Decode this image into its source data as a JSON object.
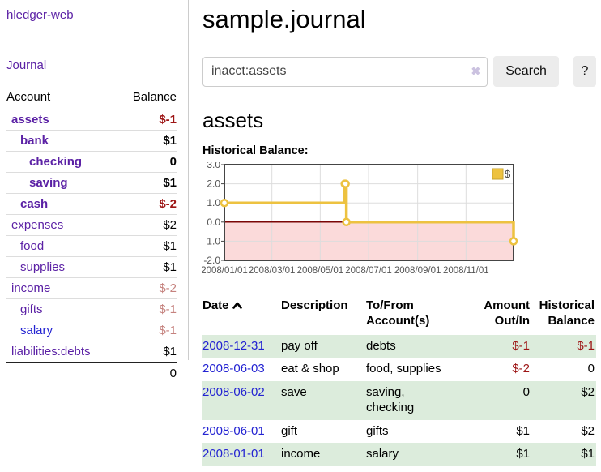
{
  "colors": {
    "purple": "#5b21a5",
    "blue": "#2323d2",
    "negStrong": "#9d1515",
    "negMuted": "#c5827e",
    "rowGreen": "#dcecdc",
    "gold": "#edc240",
    "goldBorder": "#c6a32f",
    "pink": "#fbdada",
    "zeroRed": "#7a0606",
    "chartBorder": "#454545",
    "chartGrid": "#dddddd",
    "chartLabel": "#545454",
    "btnBg": "#ececec",
    "inputBorder": "#cccccc",
    "clearIcon": "#cbc2e0"
  },
  "sidebar": {
    "app_title": "hledger-web",
    "journal_label": "Journal",
    "accounts_table": {
      "header_account": "Account",
      "header_balance": "Balance",
      "rows": [
        {
          "name": "assets",
          "indent": 1,
          "bold": true,
          "name_class": "purple",
          "balance": "$-1",
          "balance_class": "neg-strong"
        },
        {
          "name": "bank",
          "indent": 2,
          "bold": true,
          "name_class": "purple",
          "balance": "$1",
          "balance_class": ""
        },
        {
          "name": "checking",
          "indent": 3,
          "bold": true,
          "name_class": "purple",
          "balance": "0",
          "balance_class": ""
        },
        {
          "name": "saving",
          "indent": 3,
          "bold": true,
          "name_class": "purple",
          "balance": "$1",
          "balance_class": ""
        },
        {
          "name": "cash",
          "indent": 2,
          "bold": true,
          "name_class": "purple",
          "balance": "$-2",
          "balance_class": "neg-strong"
        },
        {
          "name": "expenses",
          "indent": 1,
          "bold": false,
          "name_class": "purple",
          "balance": "$2",
          "balance_class": ""
        },
        {
          "name": "food",
          "indent": 2,
          "bold": false,
          "name_class": "purple",
          "balance": "$1",
          "balance_class": ""
        },
        {
          "name": "supplies",
          "indent": 2,
          "bold": false,
          "name_class": "purple",
          "balance": "$1",
          "balance_class": ""
        },
        {
          "name": "income",
          "indent": 1,
          "bold": false,
          "name_class": "purple",
          "balance": "$-2",
          "balance_class": "neg-muted"
        },
        {
          "name": "gifts",
          "indent": 2,
          "bold": false,
          "name_class": "purple",
          "balance": "$-1",
          "balance_class": "neg-muted"
        },
        {
          "name": "salary",
          "indent": 2,
          "bold": false,
          "name_class": "blue",
          "balance": "$-1",
          "balance_class": "neg-muted"
        },
        {
          "name": "liabilities:debts",
          "indent": 1,
          "bold": false,
          "name_class": "purple",
          "balance": "$1",
          "balance_class": ""
        }
      ],
      "total": "0"
    }
  },
  "main": {
    "title": "sample.journal",
    "search": {
      "value": "inacct:assets",
      "clear_glyph": "✖",
      "clear_icon_name": "clear-search-icon",
      "button_label": "Search",
      "help_label": "?"
    },
    "account_heading": "assets"
  },
  "chart_data": {
    "type": "line",
    "step": true,
    "title": "Historical Balance:",
    "series": [
      {
        "name": "$",
        "x": [
          "2008-01-01",
          "2008-06-01",
          "2008-06-02",
          "2008-06-03",
          "2008-12-31"
        ],
        "values": [
          1,
          2,
          2,
          0,
          -1
        ]
      }
    ],
    "x_range": [
      "2008-01-01",
      "2008-12-31"
    ],
    "x_ticks": [
      {
        "label": "2008/01/01",
        "date": "2008-01-01"
      },
      {
        "label": "2008/03/01",
        "date": "2008-03-01"
      },
      {
        "label": "2008/05/01",
        "date": "2008-05-01"
      },
      {
        "label": "2008/07/01",
        "date": "2008-07-01"
      },
      {
        "label": "2008/09/01",
        "date": "2008-09-01"
      },
      {
        "label": "2008/11/01",
        "date": "2008-11-01"
      }
    ],
    "y_ticks": [
      {
        "label": "3.0",
        "value": 3
      },
      {
        "label": "2.0",
        "value": 2
      },
      {
        "label": "1.0",
        "value": 1
      },
      {
        "label": "0.0",
        "value": 0
      },
      {
        "label": "-1.0",
        "value": -1
      },
      {
        "label": "-2.0",
        "value": -2
      }
    ],
    "ylim": [
      -2,
      3
    ],
    "negative_region_shaded": true,
    "legend_position": "top-right",
    "grid": true
  },
  "register": {
    "headers": {
      "date": "Date",
      "sort_icon": "chevron-up",
      "description": "Description",
      "accounts": "To/From Account(s)",
      "amount": "Amount Out/In",
      "balance": "Historical Balance"
    },
    "rows": [
      {
        "date": "2008-12-31",
        "description": "pay off",
        "accounts": "debts",
        "amount": "$-1",
        "amount_class": "neg-strong",
        "balance": "$-1",
        "balance_class": "neg-strong"
      },
      {
        "date": "2008-06-03",
        "description": "eat & shop",
        "accounts": "food, supplies",
        "amount": "$-2",
        "amount_class": "neg-strong",
        "balance": "0",
        "balance_class": ""
      },
      {
        "date": "2008-06-02",
        "description": "save",
        "accounts": "saving,\nchecking",
        "amount": "0",
        "amount_class": "",
        "balance": "$2",
        "balance_class": ""
      },
      {
        "date": "2008-06-01",
        "description": "gift",
        "accounts": "gifts",
        "amount": "$1",
        "amount_class": "",
        "balance": "$2",
        "balance_class": ""
      },
      {
        "date": "2008-01-01",
        "description": "income",
        "accounts": "salary",
        "amount": "$1",
        "amount_class": "",
        "balance": "$1",
        "balance_class": ""
      }
    ]
  }
}
